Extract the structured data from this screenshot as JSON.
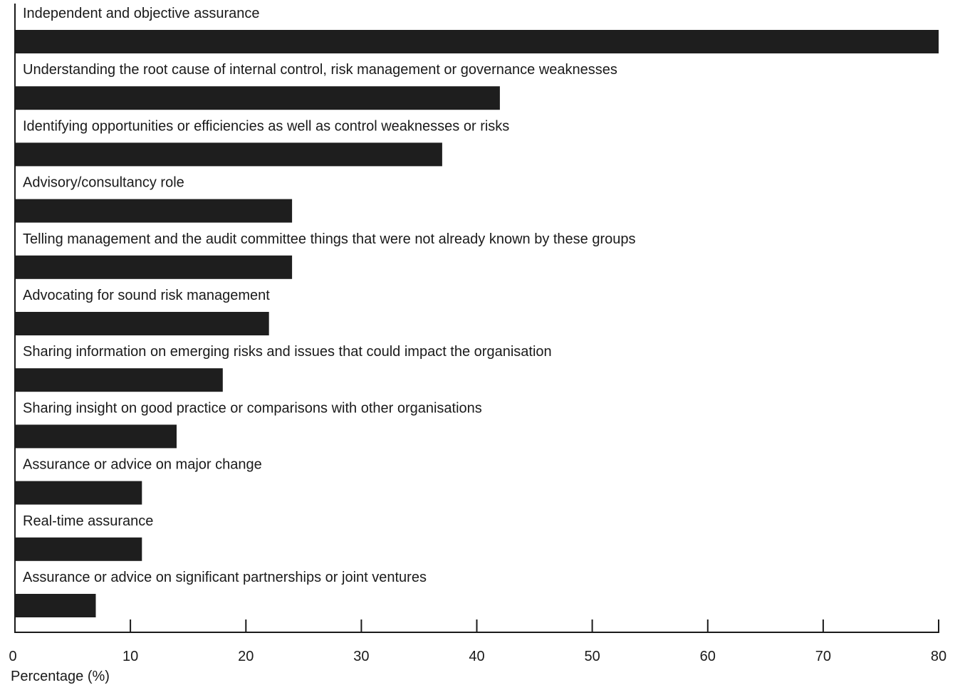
{
  "chart_data": {
    "type": "bar",
    "orientation": "horizontal",
    "categories": [
      "Independent and objective assurance",
      "Understanding the root cause of internal control, risk management or governance weaknesses",
      "Identifying opportunities or efficiencies as well as control weaknesses or risks",
      "Advisory/consultancy role",
      "Telling management and the audit committee things that were not already known by these groups",
      "Advocating for sound risk management",
      "Sharing information on emerging risks and issues that could impact the organisation",
      "Sharing insight on good practice or comparisons with other organisations",
      "Assurance or advice on major change",
      "Real-time assurance",
      "Assurance or advice on significant partnerships or joint ventures"
    ],
    "values": [
      80,
      42,
      37,
      24,
      24,
      22,
      18,
      14,
      11,
      11,
      7
    ],
    "xlabel": "Percentage (%)",
    "ylabel": "",
    "xlim": [
      0,
      80
    ],
    "xticks": [
      "0",
      "10",
      "20",
      "30",
      "40",
      "50",
      "60",
      "70",
      "80"
    ],
    "grid": false,
    "legend": "none",
    "bar_color": "#1e1e1e"
  }
}
